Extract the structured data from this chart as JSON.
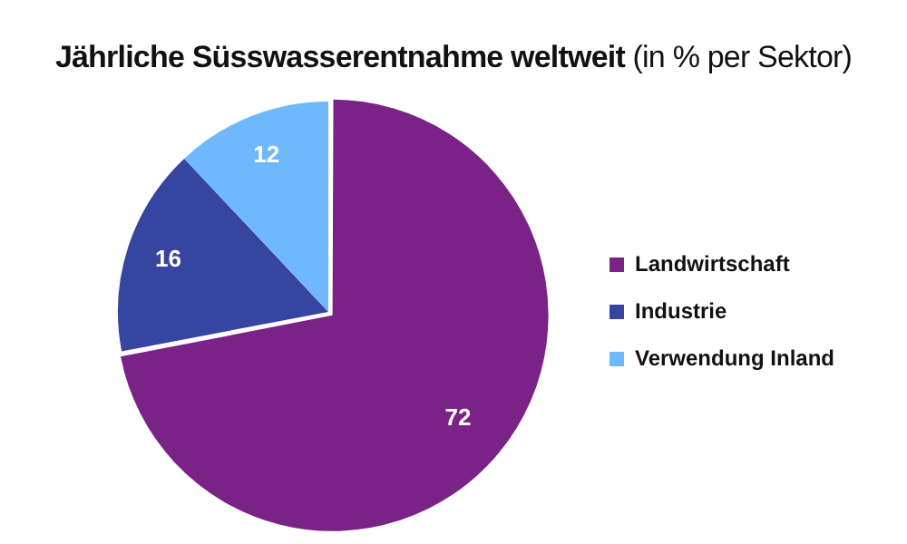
{
  "chart_data": {
    "type": "pie",
    "title": "Jährliche Süsswasserentnahme weltweit",
    "subtitle": "(in % per Sektor)",
    "categories": [
      "Landwirtschaft",
      "Industrie",
      "Verwendung Inland"
    ],
    "values": [
      72,
      16,
      12
    ],
    "colors": [
      "#7b2286",
      "#3545a0",
      "#6fb8fe"
    ],
    "data_labels": true,
    "legend": "right"
  }
}
